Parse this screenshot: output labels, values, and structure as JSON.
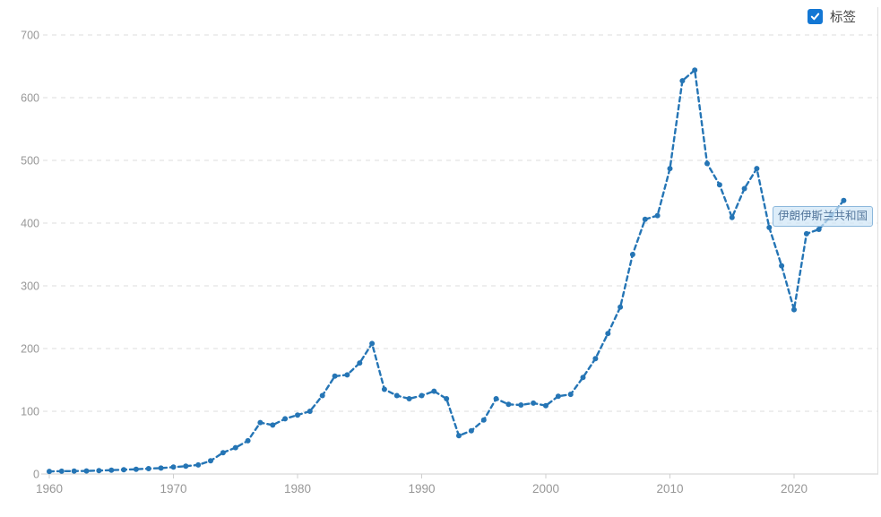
{
  "legend": {
    "label": "标签",
    "checked": true
  },
  "tooltip": {
    "text": "伊朗伊斯兰共和国"
  },
  "colors": {
    "series_line": "#2575b5",
    "checkbox_blue": "#1377d4",
    "grid_line": "#dedede",
    "axis_line": "#cfcfcf",
    "tick_text": "#979797",
    "tooltip_border": "#8cb8dc",
    "tooltip_fill": "rgba(208,230,246,0.72)",
    "tooltip_text": "#54779c"
  },
  "chart_data": {
    "type": "line",
    "title": "",
    "xlabel": "",
    "ylabel": "",
    "grid": "horizontal-dashed",
    "legend_position": "top-right",
    "xlim": [
      1960,
      2024
    ],
    "ylim": [
      0,
      700
    ],
    "x_ticks": [
      1960,
      1970,
      1980,
      1990,
      2000,
      2010,
      2020
    ],
    "y_ticks": [
      0,
      100,
      200,
      300,
      400,
      500,
      600,
      700
    ],
    "series": [
      {
        "name": "伊朗伊斯兰共和国",
        "x": [
          1960,
          1961,
          1962,
          1963,
          1964,
          1965,
          1966,
          1967,
          1968,
          1969,
          1970,
          1971,
          1972,
          1973,
          1974,
          1975,
          1976,
          1977,
          1978,
          1979,
          1980,
          1981,
          1982,
          1983,
          1984,
          1985,
          1986,
          1987,
          1988,
          1989,
          1990,
          1991,
          1992,
          1993,
          1994,
          1995,
          1996,
          1997,
          1998,
          1999,
          2000,
          2001,
          2002,
          2003,
          2004,
          2005,
          2006,
          2007,
          2008,
          2009,
          2010,
          2011,
          2012,
          2013,
          2014,
          2015,
          2016,
          2017,
          2018,
          2019,
          2020,
          2021,
          2022,
          2023,
          2024
        ],
        "values": [
          4.2,
          4.4,
          4.7,
          4.9,
          5.4,
          6.2,
          6.8,
          7.6,
          8.5,
          9.4,
          11,
          12.5,
          14.5,
          21,
          34,
          42,
          53,
          82,
          78,
          88,
          94,
          100,
          125,
          156,
          158,
          177,
          208,
          135,
          125,
          120,
          125,
          132,
          120,
          61,
          69,
          86,
          120,
          111,
          110,
          113,
          109,
          124,
          127,
          154,
          184,
          224,
          266,
          350,
          406,
          412,
          487,
          627,
          644,
          495,
          461,
          409,
          455,
          487,
          393,
          332,
          262,
          383,
          390,
          412,
          436
        ]
      }
    ]
  }
}
